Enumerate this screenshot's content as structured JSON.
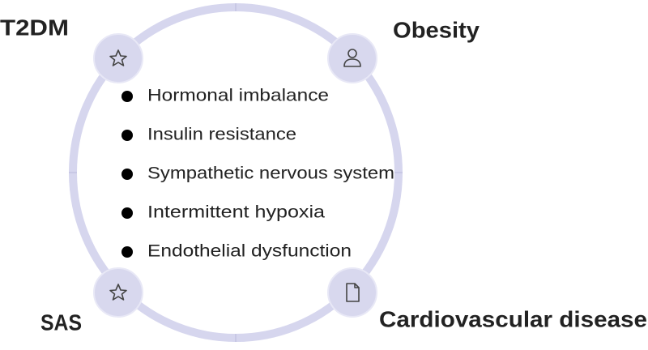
{
  "nodes": [
    {
      "label": "T2DM"
    },
    {
      "label": "Obesity"
    },
    {
      "label": "SAS"
    },
    {
      "label": "Cardiovascular disease"
    }
  ],
  "mechanisms": [
    "Hormonal imbalance",
    "Insulin resistance",
    "Sympathetic nervous system",
    "Intermittent hypoxia",
    "Endothelial dysfunction"
  ]
}
